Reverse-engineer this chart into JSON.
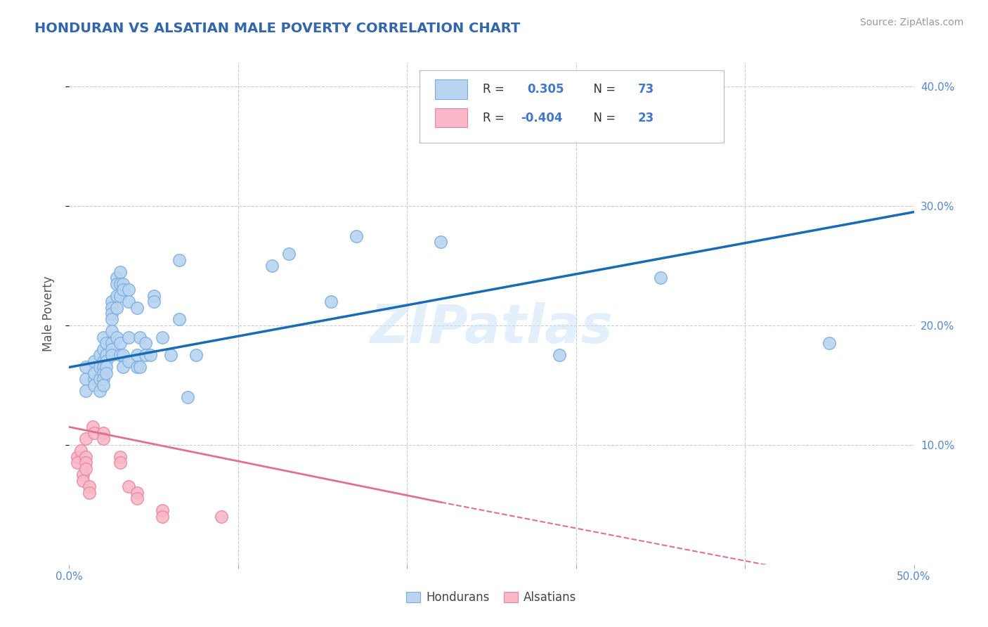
{
  "title": "HONDURAN VS ALSATIAN MALE POVERTY CORRELATION CHART",
  "source": "Source: ZipAtlas.com",
  "ylabel": "Male Poverty",
  "xlim": [
    0.0,
    0.5
  ],
  "ylim": [
    0.0,
    0.42
  ],
  "watermark": "ZIPatlas",
  "honduran_color_face": "#b8d4f0",
  "honduran_color_edge": "#7baee0",
  "alsatian_color_face": "#f8b8c8",
  "alsatian_color_edge": "#e888a0",
  "blue_line_color": "#1a6bb5",
  "pink_line_color": "#e07090",
  "tick_color": "#5588cc",
  "title_color": "#3366aa",
  "grid_color": "#cccccc",
  "honduran_points": [
    [
      0.01,
      0.155
    ],
    [
      0.01,
      0.145
    ],
    [
      0.01,
      0.165
    ],
    [
      0.015,
      0.17
    ],
    [
      0.015,
      0.155
    ],
    [
      0.015,
      0.16
    ],
    [
      0.015,
      0.15
    ],
    [
      0.018,
      0.175
    ],
    [
      0.018,
      0.165
    ],
    [
      0.018,
      0.155
    ],
    [
      0.018,
      0.145
    ],
    [
      0.02,
      0.19
    ],
    [
      0.02,
      0.18
    ],
    [
      0.02,
      0.17
    ],
    [
      0.02,
      0.165
    ],
    [
      0.02,
      0.16
    ],
    [
      0.02,
      0.155
    ],
    [
      0.02,
      0.15
    ],
    [
      0.022,
      0.185
    ],
    [
      0.022,
      0.175
    ],
    [
      0.022,
      0.17
    ],
    [
      0.022,
      0.165
    ],
    [
      0.022,
      0.16
    ],
    [
      0.025,
      0.22
    ],
    [
      0.025,
      0.215
    ],
    [
      0.025,
      0.21
    ],
    [
      0.025,
      0.205
    ],
    [
      0.025,
      0.195
    ],
    [
      0.025,
      0.185
    ],
    [
      0.025,
      0.18
    ],
    [
      0.025,
      0.175
    ],
    [
      0.028,
      0.24
    ],
    [
      0.028,
      0.235
    ],
    [
      0.028,
      0.225
    ],
    [
      0.028,
      0.215
    ],
    [
      0.028,
      0.19
    ],
    [
      0.03,
      0.245
    ],
    [
      0.03,
      0.235
    ],
    [
      0.03,
      0.225
    ],
    [
      0.03,
      0.185
    ],
    [
      0.03,
      0.175
    ],
    [
      0.032,
      0.235
    ],
    [
      0.032,
      0.23
    ],
    [
      0.032,
      0.175
    ],
    [
      0.032,
      0.165
    ],
    [
      0.035,
      0.23
    ],
    [
      0.035,
      0.22
    ],
    [
      0.035,
      0.19
    ],
    [
      0.035,
      0.17
    ],
    [
      0.04,
      0.215
    ],
    [
      0.04,
      0.175
    ],
    [
      0.04,
      0.165
    ],
    [
      0.042,
      0.19
    ],
    [
      0.042,
      0.165
    ],
    [
      0.045,
      0.185
    ],
    [
      0.045,
      0.175
    ],
    [
      0.048,
      0.175
    ],
    [
      0.05,
      0.225
    ],
    [
      0.05,
      0.22
    ],
    [
      0.055,
      0.19
    ],
    [
      0.06,
      0.175
    ],
    [
      0.065,
      0.205
    ],
    [
      0.065,
      0.255
    ],
    [
      0.07,
      0.14
    ],
    [
      0.075,
      0.175
    ],
    [
      0.12,
      0.25
    ],
    [
      0.13,
      0.26
    ],
    [
      0.155,
      0.22
    ],
    [
      0.17,
      0.275
    ],
    [
      0.22,
      0.27
    ],
    [
      0.29,
      0.175
    ],
    [
      0.35,
      0.24
    ],
    [
      0.45,
      0.185
    ]
  ],
  "alsatian_points": [
    [
      0.005,
      0.09
    ],
    [
      0.005,
      0.085
    ],
    [
      0.007,
      0.095
    ],
    [
      0.008,
      0.075
    ],
    [
      0.008,
      0.07
    ],
    [
      0.01,
      0.105
    ],
    [
      0.01,
      0.09
    ],
    [
      0.01,
      0.085
    ],
    [
      0.01,
      0.08
    ],
    [
      0.012,
      0.065
    ],
    [
      0.012,
      0.06
    ],
    [
      0.014,
      0.115
    ],
    [
      0.015,
      0.11
    ],
    [
      0.02,
      0.11
    ],
    [
      0.02,
      0.105
    ],
    [
      0.03,
      0.09
    ],
    [
      0.03,
      0.085
    ],
    [
      0.035,
      0.065
    ],
    [
      0.04,
      0.06
    ],
    [
      0.04,
      0.055
    ],
    [
      0.055,
      0.045
    ],
    [
      0.055,
      0.04
    ],
    [
      0.09,
      0.04
    ]
  ],
  "blue_trendline": [
    [
      0.0,
      0.165
    ],
    [
      0.5,
      0.295
    ]
  ],
  "pink_trendline_solid": [
    [
      0.0,
      0.115
    ],
    [
      0.22,
      0.052
    ]
  ],
  "pink_trendline_dashed": [
    [
      0.22,
      0.052
    ],
    [
      0.44,
      -0.008
    ]
  ]
}
